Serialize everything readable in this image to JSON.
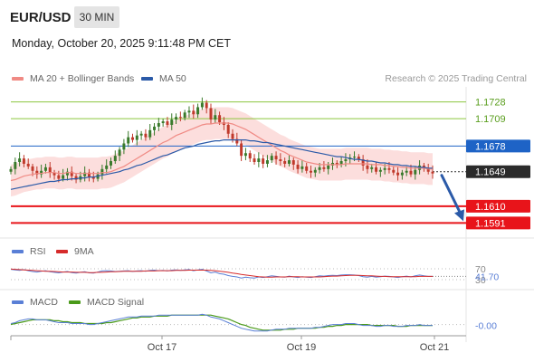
{
  "header": {
    "pair": "EUR/USD",
    "timeframe": "30 MIN",
    "datetime": "Monday, October 20, 2025 9:11:48 PM CET"
  },
  "legend": {
    "ma20_label": "MA 20 + Bollinger Bands",
    "ma50_label": "MA 50",
    "rsi_label": "RSI",
    "rsi_ma_label": "9MA",
    "macd_label": "MACD",
    "macd_signal_label": "MACD Signal"
  },
  "credit": "Research © 2025 Trading Central",
  "colors": {
    "ma20": "#f08a84",
    "ma50": "#2b5aa8",
    "bollinger_fill": "#fbd3d1",
    "bull": "#3a7a2c",
    "bear": "#c0392b",
    "resistance": "#8cc63f",
    "pivot": "#1e63c6",
    "support": "#e8141a",
    "rsi": "#5a7fd6",
    "rsi_ma": "#d62b2b",
    "macd": "#5a7fd6",
    "macd_signal": "#4a9a1a",
    "arrow": "#2b5aa8"
  },
  "chart_data": {
    "type": "candlestick",
    "price_range": [
      1.1575,
      1.1745
    ],
    "x_ticks": [
      "Oct 17",
      "Oct 19",
      "Oct 21"
    ],
    "levels": [
      {
        "value": 1.1728,
        "label": "1.1728",
        "kind": "resistance"
      },
      {
        "value": 1.1709,
        "label": "1.1709",
        "kind": "resistance"
      },
      {
        "value": 1.1678,
        "label": "1.1678",
        "kind": "pivot"
      },
      {
        "value": 1.1649,
        "label": "1.1649",
        "kind": "current"
      },
      {
        "value": 1.161,
        "label": "1.1610",
        "kind": "support"
      },
      {
        "value": 1.1591,
        "label": "1.1591",
        "kind": "support"
      }
    ],
    "close": [
      1.1652,
      1.166,
      1.1664,
      1.1658,
      1.1655,
      1.165,
      1.1646,
      1.165,
      1.1654,
      1.1648,
      1.1645,
      1.1641,
      1.1645,
      1.1649,
      1.1644,
      1.164,
      1.1644,
      1.1648,
      1.1643,
      1.1641,
      1.1646,
      1.1652,
      1.1656,
      1.1661,
      1.1667,
      1.1674,
      1.1681,
      1.1688,
      1.1685,
      1.169,
      1.1692,
      1.1688,
      1.1696,
      1.17,
      1.1704,
      1.1706,
      1.1702,
      1.1708,
      1.1711,
      1.171,
      1.1716,
      1.1718,
      1.1714,
      1.1722,
      1.1727,
      1.1721,
      1.1708,
      1.1713,
      1.1705,
      1.1702,
      1.1692,
      1.1686,
      1.1681,
      1.1667,
      1.167,
      1.1664,
      1.166,
      1.1664,
      1.1658,
      1.1662,
      1.1667,
      1.1663,
      1.1661,
      1.1658,
      1.1662,
      1.1657,
      1.1652,
      1.1655,
      1.165,
      1.1648,
      1.1651,
      1.1654,
      1.1652,
      1.1656,
      1.1659,
      1.1657,
      1.1661,
      1.1663,
      1.1665,
      1.1666,
      1.1663,
      1.1656,
      1.1652,
      1.1654,
      1.1649,
      1.1651,
      1.1653,
      1.1651,
      1.1648,
      1.1645,
      1.1648,
      1.165,
      1.1646,
      1.1651,
      1.1656,
      1.1653,
      1.1649,
      1.1647
    ],
    "ma20": [
      1.1639,
      1.164,
      1.1642,
      1.1644,
      1.1645,
      1.1646,
      1.1647,
      1.1647,
      1.1648,
      1.1648,
      1.1648,
      1.1647,
      1.1647,
      1.1648,
      1.1648,
      1.1647,
      1.1647,
      1.1647,
      1.1647,
      1.1647,
      1.1647,
      1.1648,
      1.1648,
      1.1649,
      1.1651,
      1.1653,
      1.1655,
      1.1658,
      1.1661,
      1.1664,
      1.1667,
      1.167,
      1.1673,
      1.1676,
      1.1679,
      1.1682,
      1.1684,
      1.1687,
      1.169,
      1.1692,
      1.1694,
      1.1696,
      1.1698,
      1.17,
      1.1702,
      1.1703,
      1.1703,
      1.1704,
      1.1704,
      1.1704,
      1.1704,
      1.1703,
      1.1701,
      1.1699,
      1.1697,
      1.1694,
      1.1691,
      1.1688,
      1.1685,
      1.1682,
      1.1679,
      1.1676,
      1.1673,
      1.1671,
      1.1668,
      1.1666,
      1.1664,
      1.1662,
      1.166,
      1.1659,
      1.1658,
      1.1657,
      1.1657,
      1.1657,
      1.1657,
      1.1657,
      1.1657,
      1.1658,
      1.1658,
      1.1658,
      1.1658,
      1.1658,
      1.1658,
      1.1657,
      1.1657,
      1.1657,
      1.1656,
      1.1656,
      1.1655,
      1.1655,
      1.1654,
      1.1654,
      1.1653,
      1.1653,
      1.1653,
      1.1653,
      1.1652,
      1.1652
    ],
    "ma50": [
      1.1629,
      1.163,
      1.1631,
      1.1632,
      1.1633,
      1.1634,
      1.1635,
      1.1636,
      1.1637,
      1.1638,
      1.1638,
      1.1639,
      1.164,
      1.164,
      1.1641,
      1.1641,
      1.1642,
      1.1642,
      1.1643,
      1.1643,
      1.1644,
      1.1645,
      1.1646,
      1.1647,
      1.1648,
      1.1649,
      1.1651,
      1.1652,
      1.1654,
      1.1656,
      1.1657,
      1.1659,
      1.1661,
      1.1663,
      1.1665,
      1.1667,
      1.1668,
      1.167,
      1.1672,
      1.1674,
      1.1676,
      1.1677,
      1.1678,
      1.168,
      1.1681,
      1.1682,
      1.1683,
      1.1684,
      1.1684,
      1.1685,
      1.1685,
      1.1685,
      1.1685,
      1.1685,
      1.1685,
      1.1684,
      1.1684,
      1.1683,
      1.1682,
      1.1682,
      1.1681,
      1.168,
      1.1679,
      1.1678,
      1.1677,
      1.1676,
      1.1675,
      1.1674,
      1.1673,
      1.1672,
      1.1671,
      1.167,
      1.1669,
      1.1668,
      1.1667,
      1.1666,
      1.1666,
      1.1665,
      1.1664,
      1.1663,
      1.1663,
      1.1662,
      1.1661,
      1.1661,
      1.166,
      1.1659,
      1.1659,
      1.1658,
      1.1657,
      1.1657,
      1.1656,
      1.1656,
      1.1655,
      1.1655,
      1.1654,
      1.1654,
      1.1653,
      1.1653
    ],
    "bb_width": 0.0018,
    "forecast_target": 1.1591,
    "rsi": {
      "range": [
        0,
        100
      ],
      "levels": [
        {
          "value": 70,
          "label": "70"
        },
        {
          "value": 30,
          "label": "30"
        }
      ],
      "current_label": "41.70",
      "values": [
        68,
        66,
        64,
        67,
        63,
        60,
        58,
        61,
        63,
        59,
        57,
        55,
        58,
        60,
        56,
        54,
        57,
        59,
        55,
        54,
        58,
        62,
        63,
        62,
        60,
        61,
        62,
        63,
        60,
        62,
        63,
        61,
        64,
        65,
        63,
        64,
        62,
        65,
        66,
        64,
        66,
        67,
        63,
        66,
        68,
        62,
        55,
        58,
        52,
        50,
        45,
        42,
        40,
        36,
        39,
        37,
        36,
        40,
        38,
        41,
        44,
        42,
        40,
        39,
        43,
        40,
        38,
        41,
        39,
        38,
        41,
        44,
        43,
        45,
        46,
        45,
        47,
        48,
        48,
        47,
        45,
        41,
        39,
        42,
        39,
        41,
        43,
        42,
        40,
        38,
        41,
        43,
        40,
        44,
        47,
        44,
        42,
        42
      ],
      "ma_values": [
        69,
        68,
        67,
        66,
        65,
        64,
        63,
        62,
        61,
        61,
        60,
        59,
        58,
        58,
        58,
        57,
        57,
        57,
        56,
        56,
        57,
        57,
        58,
        59,
        59,
        60,
        61,
        61,
        61,
        61,
        61,
        62,
        62,
        62,
        63,
        63,
        63,
        63,
        64,
        64,
        64,
        65,
        65,
        65,
        65,
        65,
        64,
        63,
        61,
        59,
        57,
        54,
        52,
        49,
        47,
        45,
        43,
        41,
        40,
        39,
        39,
        40,
        40,
        40,
        41,
        41,
        41,
        40,
        40,
        40,
        40,
        40,
        41,
        42,
        43,
        43,
        44,
        45,
        46,
        46,
        46,
        45,
        44,
        44,
        43,
        42,
        42,
        41,
        41,
        41,
        41,
        41,
        41,
        41,
        42,
        42,
        42,
        42
      ]
    },
    "macd": {
      "range": [
        -0.0012,
        0.0016
      ],
      "current_label": "-0.00",
      "macd": [
        0.0001,
        0.0002,
        0.0004,
        0.0005,
        0.0006,
        0.0006,
        0.0005,
        0.0005,
        0.0005,
        0.0004,
        0.0003,
        0.0002,
        0.0002,
        0.0002,
        0.0001,
        0.0001,
        0.0001,
        0.0001,
        0.0,
        0.0,
        0.0001,
        0.0002,
        0.0003,
        0.0004,
        0.0005,
        0.0006,
        0.0007,
        0.0008,
        0.0008,
        0.0008,
        0.0009,
        0.0009,
        0.0009,
        0.0009,
        0.001,
        0.001,
        0.001,
        0.001,
        0.001,
        0.001,
        0.001,
        0.001,
        0.001,
        0.001,
        0.0011,
        0.001,
        0.0008,
        0.0007,
        0.0006,
        0.0004,
        0.0002,
        0.0,
        -0.0002,
        -0.0004,
        -0.0005,
        -0.0006,
        -0.0007,
        -0.0007,
        -0.0007,
        -0.0007,
        -0.0006,
        -0.0005,
        -0.0005,
        -0.0005,
        -0.0004,
        -0.0004,
        -0.0004,
        -0.0004,
        -0.0004,
        -0.0004,
        -0.0003,
        -0.0003,
        -0.0002,
        -0.0001,
        0.0,
        0.0,
        0.0,
        0.0001,
        0.0001,
        0.0001,
        0.0,
        -0.0001,
        -0.0001,
        -0.0001,
        -0.0002,
        -0.0002,
        -0.0001,
        -0.0001,
        -0.0002,
        -0.0002,
        -0.0002,
        -0.0001,
        -0.0001,
        -0.0001,
        0.0,
        -0.0001,
        -0.0001,
        -0.0001
      ],
      "signal": [
        0.0,
        0.0001,
        0.0002,
        0.0003,
        0.0004,
        0.0005,
        0.0005,
        0.0005,
        0.0005,
        0.0005,
        0.0004,
        0.0004,
        0.0003,
        0.0003,
        0.0002,
        0.0002,
        0.0002,
        0.0001,
        0.0001,
        0.0001,
        0.0001,
        0.0001,
        0.0002,
        0.0002,
        0.0003,
        0.0004,
        0.0005,
        0.0006,
        0.0007,
        0.0007,
        0.0008,
        0.0008,
        0.0008,
        0.0009,
        0.0009,
        0.0009,
        0.0009,
        0.001,
        0.001,
        0.001,
        0.001,
        0.001,
        0.001,
        0.001,
        0.001,
        0.001,
        0.001,
        0.0009,
        0.0008,
        0.0007,
        0.0006,
        0.0004,
        0.0002,
        0.0,
        -0.0001,
        -0.0003,
        -0.0004,
        -0.0005,
        -0.0006,
        -0.0006,
        -0.0006,
        -0.0006,
        -0.0006,
        -0.0005,
        -0.0005,
        -0.0005,
        -0.0004,
        -0.0004,
        -0.0004,
        -0.0004,
        -0.0004,
        -0.0003,
        -0.0003,
        -0.0002,
        -0.0002,
        -0.0001,
        -0.0001,
        0.0,
        0.0,
        0.0,
        0.0,
        0.0,
        0.0,
        -0.0001,
        -0.0001,
        -0.0001,
        -0.0001,
        -0.0001,
        -0.0001,
        -0.0002,
        -0.0002,
        -0.0002,
        -0.0001,
        -0.0001,
        -0.0001,
        -0.0001,
        -0.0001,
        -0.0001
      ]
    }
  }
}
